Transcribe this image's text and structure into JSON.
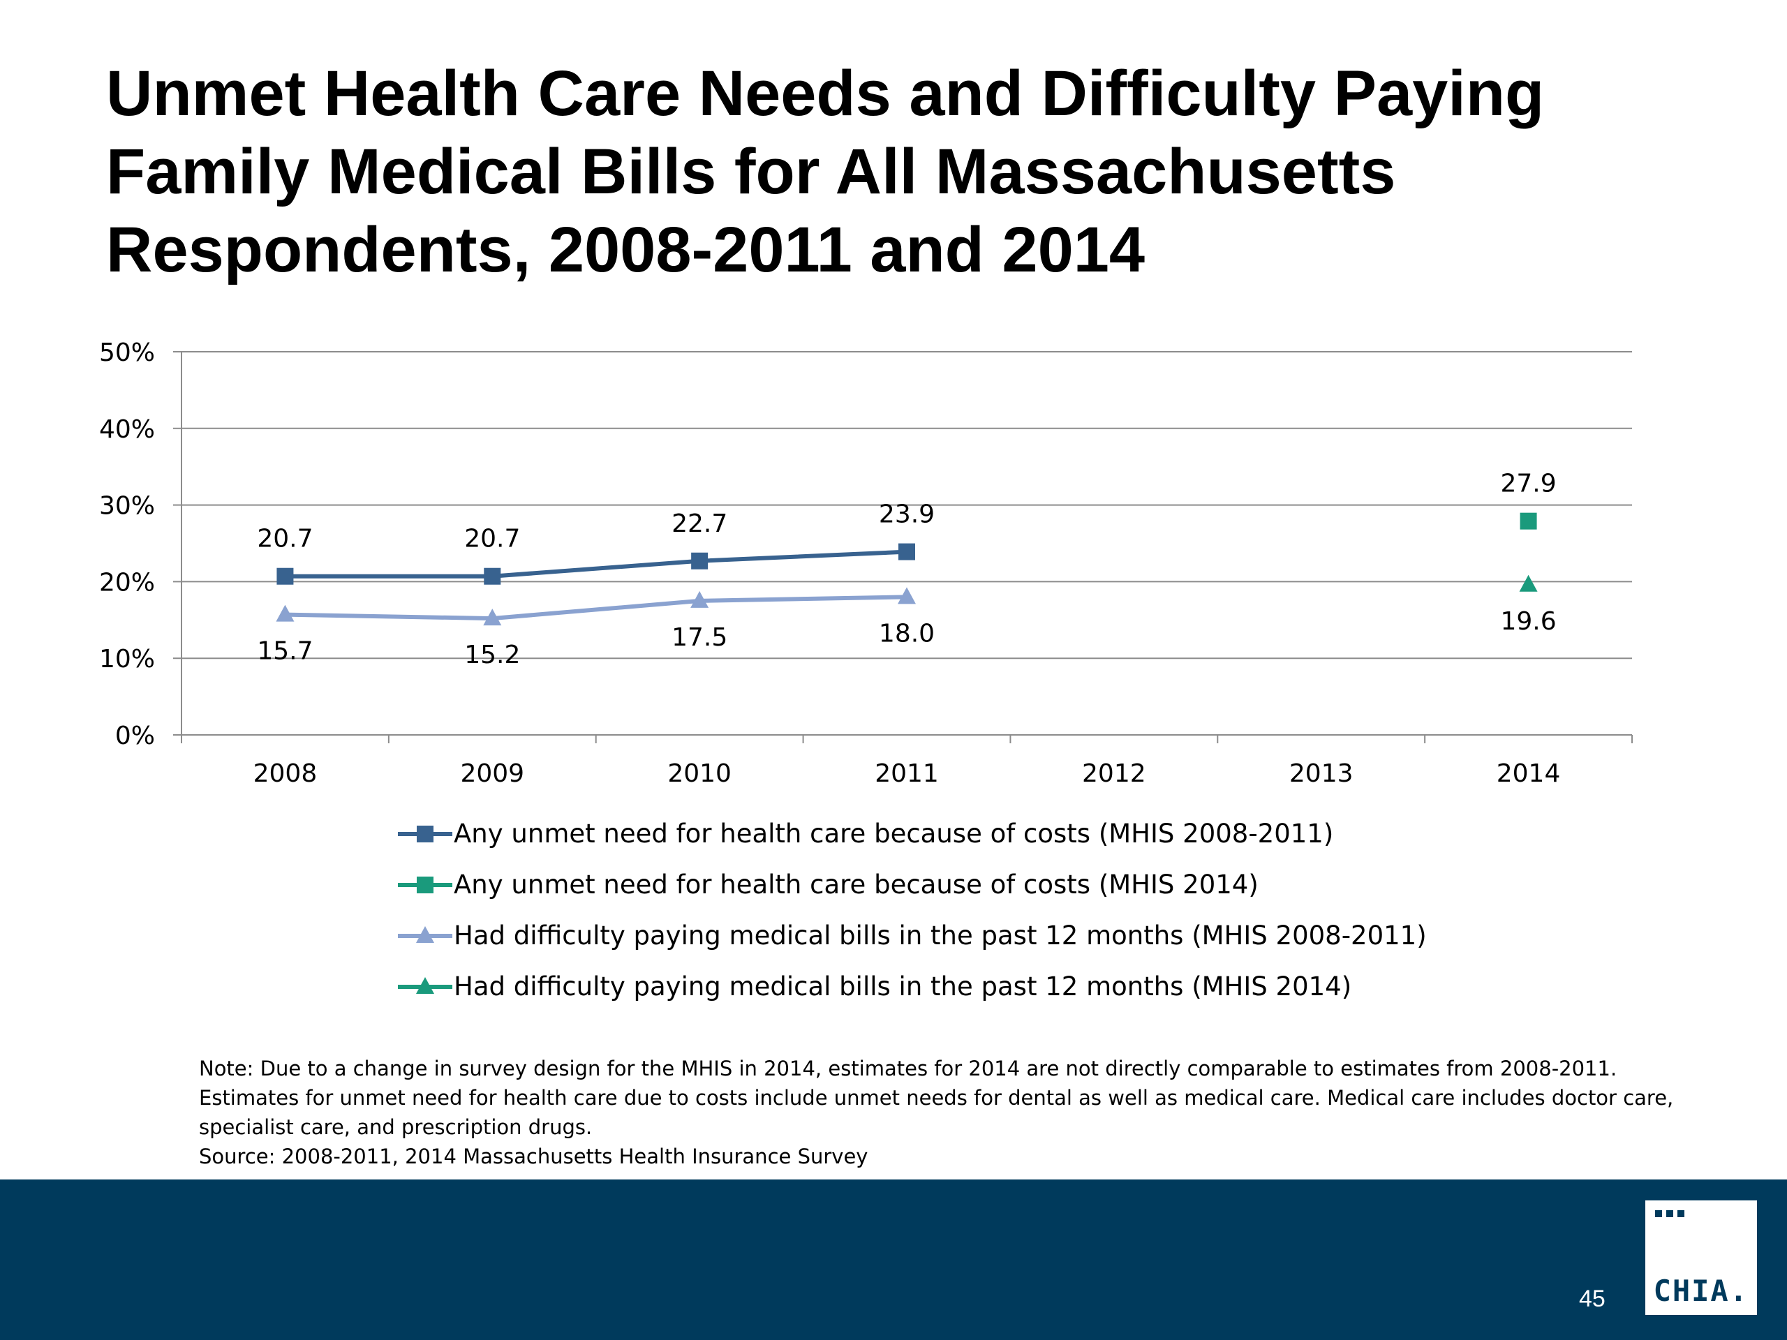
{
  "slide": {
    "title_lines": [
      "Unmet Health Care Needs and Difficulty Paying",
      "Family Medical Bills for All Massachusetts",
      "Respondents, 2008-2011 and 2014"
    ],
    "note_lines": [
      "Note: Due to a change in survey design for the MHIS in 2014, estimates for 2014 are not directly comparable to estimates from 2008-2011.",
      "Estimates for unmet need for health care due to costs include unmet needs for dental as well as medical care. Medical care includes doctor care,",
      "specialist care, and prescription drugs.",
      "Source:  2008-2011, 2014 Massachusetts Health Insurance Survey"
    ],
    "page_number": "45",
    "logo_text": "CHIA.",
    "colors": {
      "footer_band": "#003a5c",
      "dark_blue": "#38628f",
      "light_blue": "#8aa2d0",
      "teal": "#1a9a7c"
    }
  },
  "chart_data": {
    "type": "line",
    "categories": [
      "2008",
      "2009",
      "2010",
      "2011",
      "2012",
      "2013",
      "2014"
    ],
    "y_ticks": [
      "0%",
      "10%",
      "20%",
      "30%",
      "40%",
      "50%"
    ],
    "ylim": [
      0,
      50
    ],
    "grid": true,
    "legend_position": "bottom",
    "series": [
      {
        "name": "Any unmet need for health care because of costs (MHIS 2008-2011)",
        "color": "#38628f",
        "marker": "square",
        "label_position": "above",
        "values": [
          20.7,
          20.7,
          22.7,
          23.9,
          null,
          null,
          null
        ],
        "labels": [
          "20.7",
          "20.7",
          "22.7",
          "23.9",
          "",
          "",
          ""
        ]
      },
      {
        "name": "Any unmet need for health care because of costs (MHIS 2014)",
        "color": "#1a9a7c",
        "marker": "square",
        "label_position": "above",
        "values": [
          null,
          null,
          null,
          null,
          null,
          null,
          27.9
        ],
        "labels": [
          "",
          "",
          "",
          "",
          "",
          "",
          "27.9"
        ]
      },
      {
        "name": "Had difficulty paying medical bills in the past 12 months (MHIS 2008-2011)",
        "color": "#8aa2d0",
        "marker": "triangle",
        "label_position": "below",
        "values": [
          15.7,
          15.2,
          17.5,
          18.0,
          null,
          null,
          null
        ],
        "labels": [
          "15.7",
          "15.2",
          "17.5",
          "18.0",
          "",
          "",
          ""
        ]
      },
      {
        "name": "Had difficulty paying medical bills in the past 12 months (MHIS 2014)",
        "color": "#1a9a7c",
        "marker": "triangle",
        "label_position": "below",
        "values": [
          null,
          null,
          null,
          null,
          null,
          null,
          19.6
        ],
        "labels": [
          "",
          "",
          "",
          "",
          "",
          "",
          "19.6"
        ]
      }
    ]
  }
}
